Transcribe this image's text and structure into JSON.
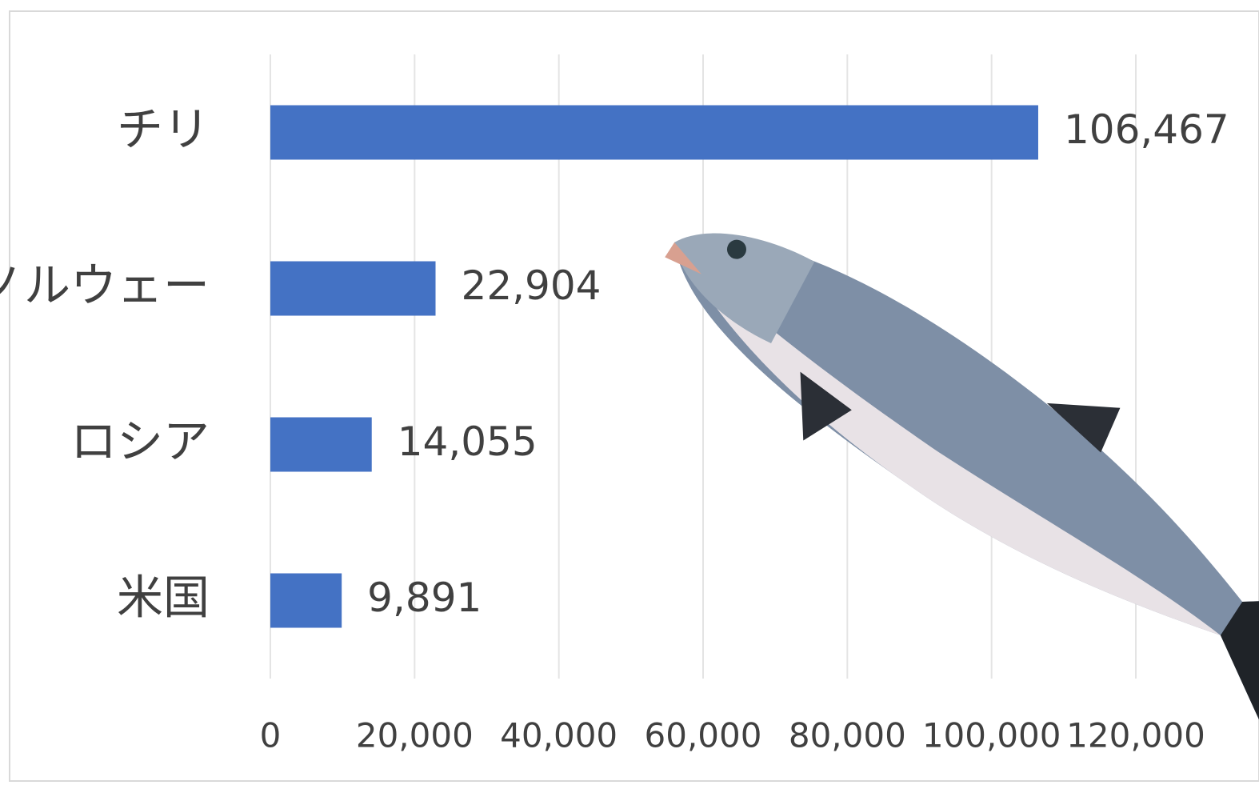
{
  "chart_data": {
    "type": "bar",
    "orientation": "horizontal",
    "categories": [
      "チリ",
      "ノルウェー",
      "ロシア",
      "米国"
    ],
    "values": [
      106467,
      22904,
      14055,
      9891
    ],
    "value_labels": [
      "106,467",
      "22,904",
      "14,055",
      "9,891"
    ],
    "color": "#4472c4",
    "xlim": [
      0,
      120000
    ],
    "xticks": [
      0,
      {
        "value": 20000,
        "label": "20,000"
      },
      {
        "value": 40000,
        "label": "40,000"
      },
      {
        "value": 60000,
        "label": "60,000"
      },
      {
        "value": 80000,
        "label": "80,000"
      },
      {
        "value": 100000,
        "label": "100,000"
      },
      {
        "value": 120000,
        "label": "120,000"
      }
    ],
    "grid": true
  }
}
